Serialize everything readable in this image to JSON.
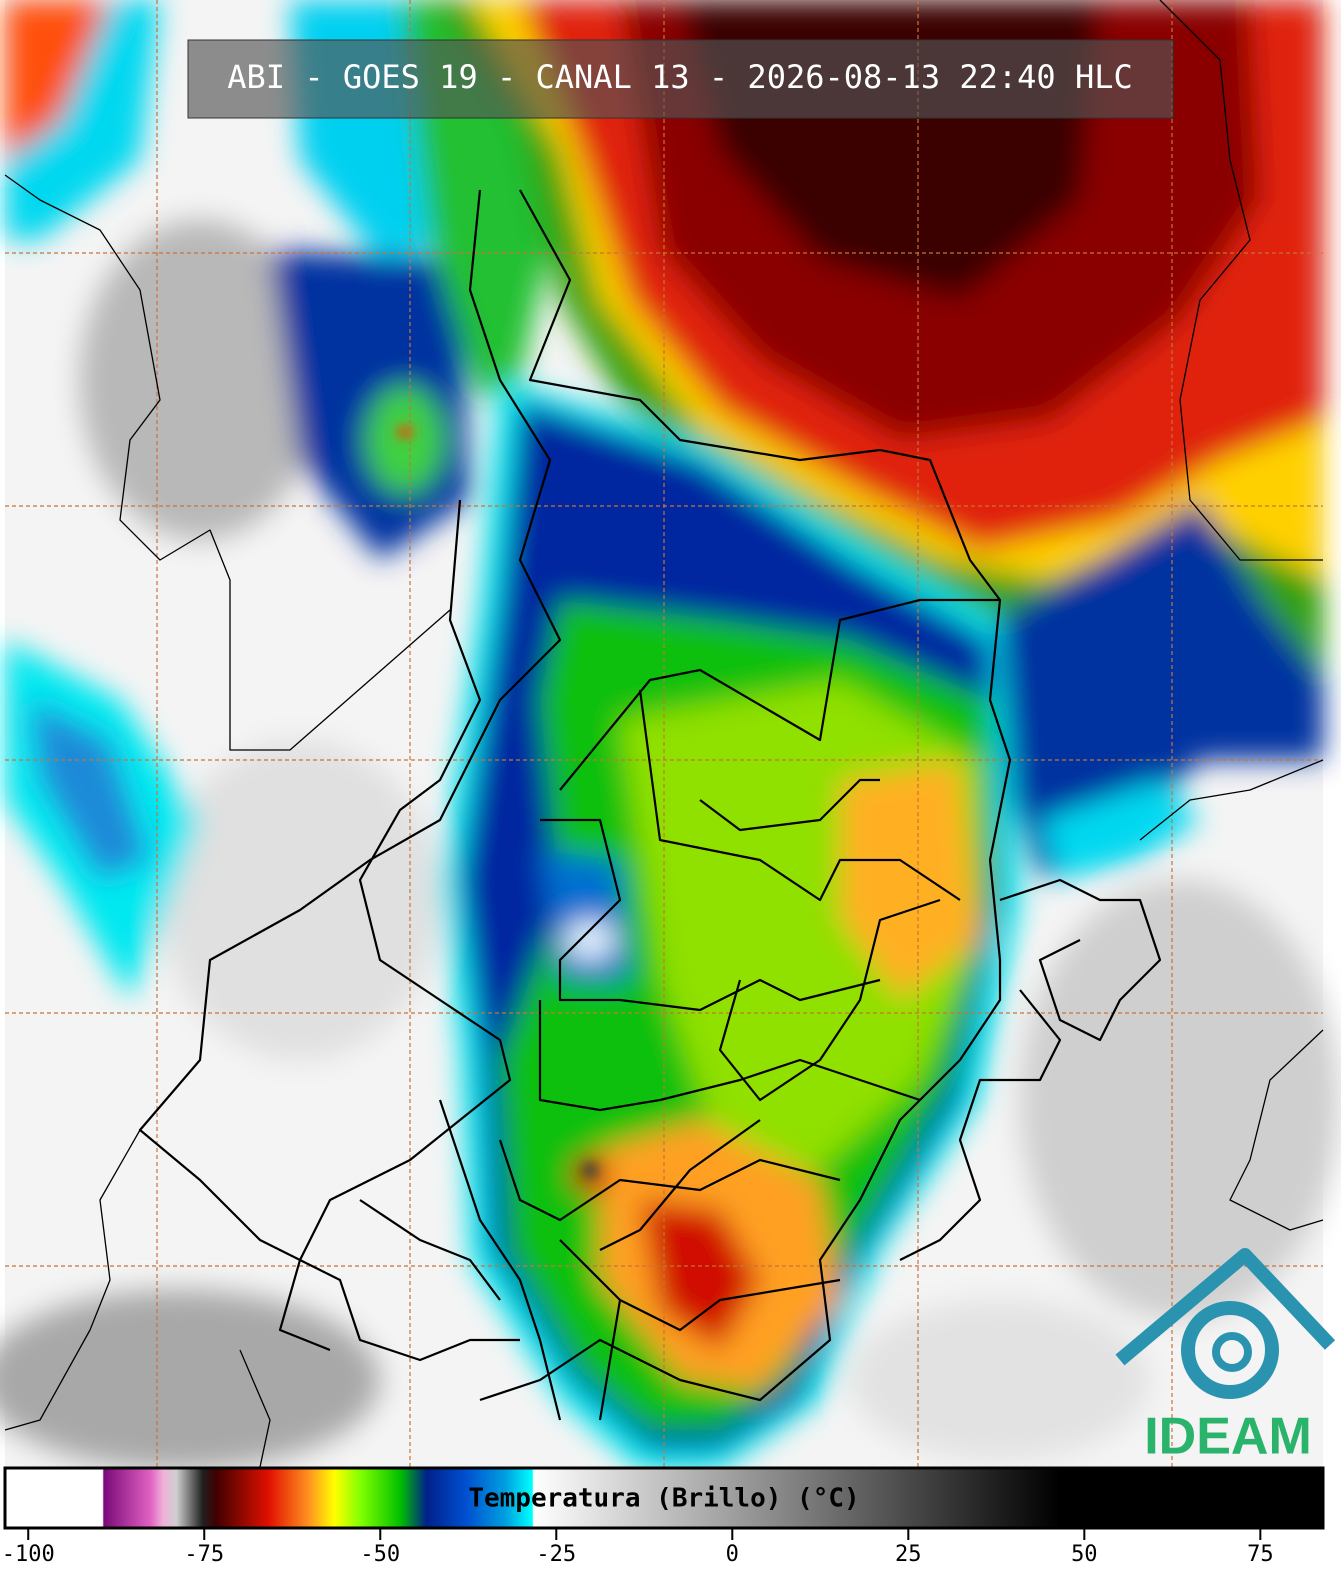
{
  "header": {
    "title": "ABI - GOES 19 - CANAL 13 - 2026-08-13 22:40 HLC"
  },
  "colorbar": {
    "label": "Temperatura (Brillo) (°C)",
    "range": [
      -103.3,
      83.9
    ],
    "ticks": [
      -100,
      -75,
      -50,
      -25,
      0,
      25,
      50,
      75
    ]
  },
  "logo": {
    "text": "IDEAM"
  }
}
